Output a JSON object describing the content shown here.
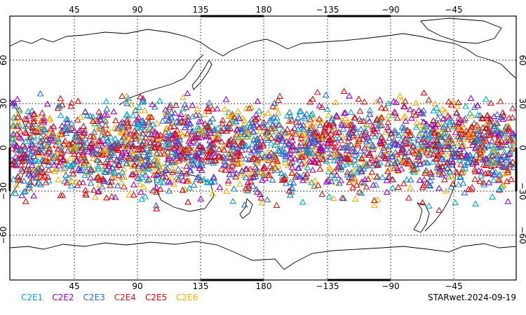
{
  "map": {
    "projection": "equirectangular",
    "center_longitude": 180,
    "lon_ticks": [
      "45",
      "90",
      "135",
      "180",
      "−135",
      "−90",
      "−45"
    ],
    "lat_ticks": [
      "60",
      "30",
      "0",
      "−30",
      "−60"
    ],
    "frame_color": "#000000",
    "grid": "dotted",
    "coastline_color": "#000000",
    "marker_shape": "open-triangle",
    "marker_band_latitude": [
      -45,
      45
    ]
  },
  "legend": [
    {
      "label": "C2E1",
      "color": "#00aacc"
    },
    {
      "label": "C2E2",
      "color": "#9900cc"
    },
    {
      "label": "C2E3",
      "color": "#1f6fd6"
    },
    {
      "label": "C2E4",
      "color": "#cc1a1a"
    },
    {
      "label": "C2E5",
      "color": "#e60000"
    },
    {
      "label": "C2E6",
      "color": "#f0b000"
    }
  ],
  "footer": {
    "label": "STARwet.2024-09-19"
  }
}
